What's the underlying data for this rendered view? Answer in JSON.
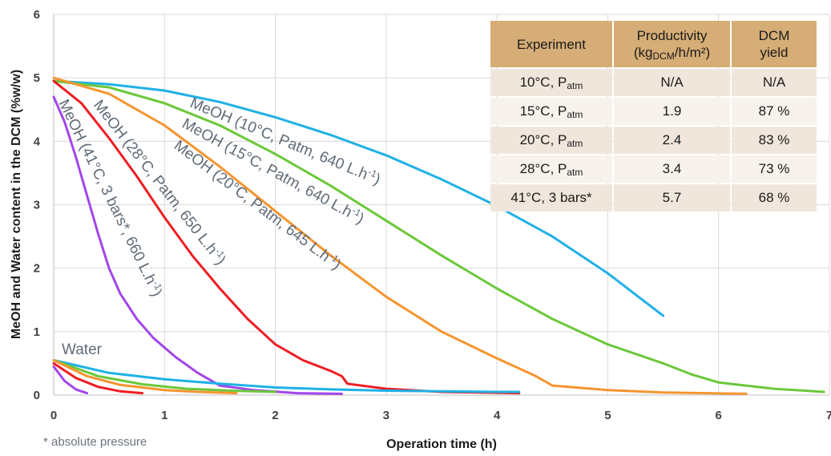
{
  "chart_data": {
    "type": "line",
    "title": "",
    "xlabel": "Operation time (h)",
    "ylabel": "MeOH and Water content in the DCM (%w/w)",
    "xlim": [
      0,
      7
    ],
    "ylim": [
      0,
      6
    ],
    "x_ticks": [
      "0",
      "1",
      "2",
      "3",
      "4",
      "5",
      "6",
      "7"
    ],
    "y_ticks": [
      "0",
      "1",
      "2",
      "3",
      "4",
      "5",
      "6"
    ],
    "grid": true,
    "series": [
      {
        "name": "MeOH (10°C, Patm, 640 L.h-1)",
        "color": "#1fb1e6",
        "points": [
          [
            0,
            4.95
          ],
          [
            0.5,
            4.9
          ],
          [
            1,
            4.8
          ],
          [
            1.5,
            4.62
          ],
          [
            2,
            4.38
          ],
          [
            2.5,
            4.1
          ],
          [
            3,
            3.78
          ],
          [
            3.5,
            3.4
          ],
          [
            4,
            2.98
          ],
          [
            4.5,
            2.5
          ],
          [
            5,
            1.92
          ],
          [
            5.5,
            1.25
          ]
        ]
      },
      {
        "name": "MeOH (15°C, Patm, 640 L.h-1)",
        "color": "#6bc83a",
        "points": [
          [
            0,
            4.95
          ],
          [
            0.5,
            4.85
          ],
          [
            1,
            4.6
          ],
          [
            1.5,
            4.25
          ],
          [
            2,
            3.8
          ],
          [
            2.5,
            3.3
          ],
          [
            3,
            2.75
          ],
          [
            3.5,
            2.2
          ],
          [
            4,
            1.68
          ],
          [
            4.5,
            1.2
          ],
          [
            5,
            0.8
          ],
          [
            5.5,
            0.5
          ],
          [
            5.75,
            0.33
          ],
          [
            6,
            0.2
          ],
          [
            6.5,
            0.1
          ],
          [
            6.95,
            0.05
          ]
        ]
      },
      {
        "name": "MeOH (20°C, Patm, 645 L.h-1)",
        "color": "#f6952f",
        "points": [
          [
            0,
            5.0
          ],
          [
            0.5,
            4.75
          ],
          [
            1,
            4.25
          ],
          [
            1.5,
            3.6
          ],
          [
            2,
            2.9
          ],
          [
            2.5,
            2.2
          ],
          [
            3,
            1.55
          ],
          [
            3.5,
            1.0
          ],
          [
            4,
            0.58
          ],
          [
            4.35,
            0.3
          ],
          [
            4.5,
            0.15
          ],
          [
            5,
            0.08
          ],
          [
            5.5,
            0.04
          ],
          [
            6.25,
            0.02
          ]
        ]
      },
      {
        "name": "MeOH (28°C, Patm, 650 L.h-1)",
        "color": "#ee1d23",
        "points": [
          [
            0,
            4.95
          ],
          [
            0.25,
            4.6
          ],
          [
            0.5,
            4.05
          ],
          [
            0.75,
            3.45
          ],
          [
            1,
            2.8
          ],
          [
            1.25,
            2.2
          ],
          [
            1.5,
            1.68
          ],
          [
            1.75,
            1.2
          ],
          [
            2,
            0.8
          ],
          [
            2.25,
            0.55
          ],
          [
            2.5,
            0.38
          ],
          [
            2.6,
            0.3
          ],
          [
            2.65,
            0.18
          ],
          [
            3,
            0.1
          ],
          [
            3.5,
            0.05
          ],
          [
            4.2,
            0.03
          ]
        ]
      },
      {
        "name": "MeOH (41°C, 3 bars*, 660 L.h-1)",
        "color": "#a246ea",
        "points": [
          [
            0,
            4.7
          ],
          [
            0.1,
            4.3
          ],
          [
            0.2,
            3.75
          ],
          [
            0.3,
            3.15
          ],
          [
            0.4,
            2.55
          ],
          [
            0.5,
            2.0
          ],
          [
            0.6,
            1.6
          ],
          [
            0.75,
            1.2
          ],
          [
            0.9,
            0.9
          ],
          [
            1.1,
            0.6
          ],
          [
            1.3,
            0.35
          ],
          [
            1.5,
            0.15
          ],
          [
            1.8,
            0.08
          ],
          [
            2.2,
            0.03
          ],
          [
            2.6,
            0.02
          ]
        ]
      },
      {
        "name": "Water (10°C)",
        "color": "#1fb1e6",
        "points": [
          [
            0,
            0.55
          ],
          [
            0.5,
            0.35
          ],
          [
            1,
            0.25
          ],
          [
            1.5,
            0.18
          ],
          [
            2,
            0.12
          ],
          [
            2.5,
            0.09
          ],
          [
            3,
            0.07
          ],
          [
            3.5,
            0.06
          ],
          [
            4,
            0.05
          ],
          [
            4.2,
            0.05
          ]
        ]
      },
      {
        "name": "Water (15°C)",
        "color": "#6bc83a",
        "points": [
          [
            0,
            0.55
          ],
          [
            0.4,
            0.3
          ],
          [
            0.8,
            0.17
          ],
          [
            1.2,
            0.1
          ],
          [
            1.6,
            0.07
          ],
          [
            2,
            0.05
          ]
        ]
      },
      {
        "name": "Water (20°C)",
        "color": "#f6952f",
        "points": [
          [
            0,
            0.55
          ],
          [
            0.3,
            0.3
          ],
          [
            0.6,
            0.16
          ],
          [
            1,
            0.08
          ],
          [
            1.3,
            0.05
          ],
          [
            1.65,
            0.03
          ]
        ]
      },
      {
        "name": "Water (28°C)",
        "color": "#ee1d23",
        "points": [
          [
            0,
            0.5
          ],
          [
            0.2,
            0.27
          ],
          [
            0.4,
            0.13
          ],
          [
            0.6,
            0.06
          ],
          [
            0.8,
            0.03
          ]
        ]
      },
      {
        "name": "Water (41°C)",
        "color": "#a246ea",
        "points": [
          [
            0,
            0.45
          ],
          [
            0.1,
            0.22
          ],
          [
            0.2,
            0.09
          ],
          [
            0.3,
            0.03
          ]
        ]
      }
    ],
    "labels": [
      "MeOH (10°C, Patm, 640 L.h-1)",
      "MeOH (15°C, Patm, 640 L.h-1)",
      "MeOH (20°C, Patm, 645 L.h-1)",
      "MeOH (28°C, Patm, 650 L.h-1)",
      "MeOH (41°C, 3 bars*, 660 L.h-1)",
      "Water"
    ],
    "footnote": "* absolute pressure"
  },
  "table": {
    "headers": {
      "experiment": "Experiment",
      "productivity_1": "Productivity",
      "productivity_2": "(kg",
      "productivity_sub": "DCM",
      "productivity_3": "/h/m²)",
      "yield_1": "DCM",
      "yield_2": "yield"
    },
    "rows": [
      {
        "exp": "10°C, P",
        "sub": "atm",
        "productivity": "N/A",
        "yield": "N/A"
      },
      {
        "exp": "15°C, P",
        "sub": "atm",
        "productivity": "1.9",
        "yield": "87 %"
      },
      {
        "exp": "20°C, P",
        "sub": "atm",
        "productivity": "2.4",
        "yield": "83 %"
      },
      {
        "exp": "28°C, P",
        "sub": "atm",
        "productivity": "3.4",
        "yield": "73 %"
      },
      {
        "exp": "41°C, 3 bars*",
        "sub": "",
        "productivity": "5.7",
        "yield": "68 %"
      }
    ]
  }
}
